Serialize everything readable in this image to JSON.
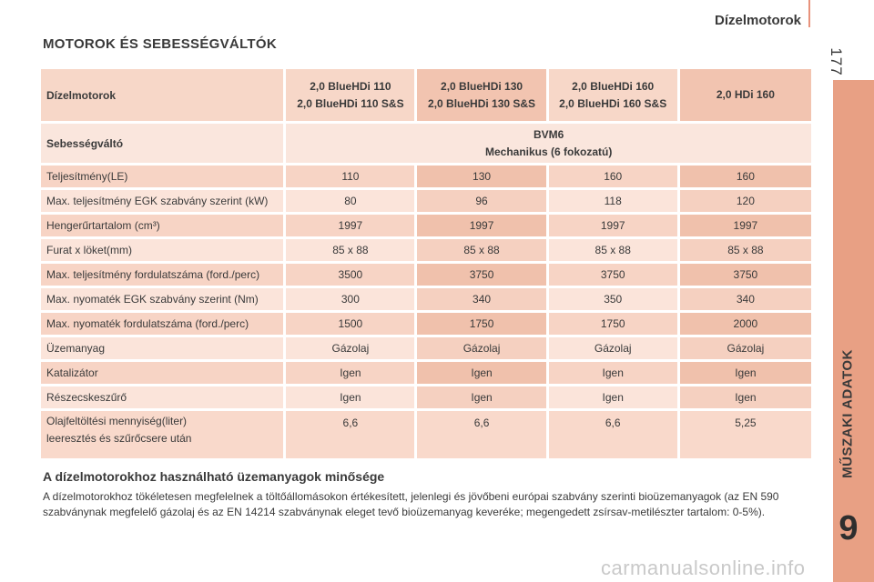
{
  "header": {
    "title": "Dízelmotorok",
    "page_number": "177"
  },
  "side_tab": {
    "label": "MŰSZAKI ADATOK",
    "chapter": "9"
  },
  "section": {
    "title": "MOTOROK ÉS SEBESSÉGVÁLTÓK"
  },
  "table": {
    "head_label": "Dízelmotorok",
    "engines": [
      {
        "line1": "2,0 BlueHDi 110",
        "line2": "2,0 BlueHDi 110 S&S"
      },
      {
        "line1": "2,0 BlueHDi 130",
        "line2": "2,0 BlueHDi 130 S&S"
      },
      {
        "line1": "2,0 BlueHDi 160",
        "line2": "2,0 BlueHDi 160 S&S"
      },
      {
        "line1": "2,0 HDi 160",
        "line2": ""
      }
    ],
    "gearbox_label": "Sebességváltó",
    "gearbox_line1": "BVM6",
    "gearbox_line2": "Mechanikus (6 fokozatú)",
    "rows": [
      {
        "label": "Teljesítmény(LE)",
        "values": [
          "110",
          "130",
          "160",
          "160"
        ]
      },
      {
        "label": "Max. teljesítmény EGK szabvány szerint (kW)",
        "values": [
          "80",
          "96",
          "118",
          "120"
        ]
      },
      {
        "label": "Hengerűrtartalom (cm³)",
        "values": [
          "1997",
          "1997",
          "1997",
          "1997"
        ]
      },
      {
        "label": "Furat x löket(mm)",
        "values": [
          "85 x 88",
          "85 x 88",
          "85 x 88",
          "85 x 88"
        ]
      },
      {
        "label": "Max. teljesítmény fordulatszáma (ford./perc)",
        "values": [
          "3500",
          "3750",
          "3750",
          "3750"
        ]
      },
      {
        "label": "Max. nyomaték EGK szabvány szerint (Nm)",
        "values": [
          "300",
          "340",
          "350",
          "340"
        ]
      },
      {
        "label": "Max. nyomaték fordulatszáma (ford./perc)",
        "values": [
          "1500",
          "1750",
          "1750",
          "2000"
        ]
      },
      {
        "label": "Üzemanyag",
        "values": [
          "Gázolaj",
          "Gázolaj",
          "Gázolaj",
          "Gázolaj"
        ]
      },
      {
        "label": "Katalizátor",
        "values": [
          "Igen",
          "Igen",
          "Igen",
          "Igen"
        ]
      },
      {
        "label": "Részecskeszűrő",
        "values": [
          "Igen",
          "Igen",
          "Igen",
          "Igen"
        ]
      }
    ],
    "oil_label_line1": "Olajfeltöltési mennyiség(liter)",
    "oil_label_line2": "leeresztés és szűrőcsere után",
    "oil_values": [
      "6,6",
      "6,6",
      "6,6",
      "5,25"
    ]
  },
  "fuel_quality": {
    "heading": "A dízelmotorokhoz használható üzemanyagok minősége",
    "body": "A dízelmotorokhoz tökéletesen megfelelnek a töltőállomásokon értékesített, jelenlegi és jövőbeni európai szabvány szerinti bioüzemanyagok (az EN 590 szabványnak megfelelő gázolaj és az EN 14214 szabványnak eleget tevő bioüzemanyag keveréke; megengedett zsírsav-metilészter tartalom: 0-5%)."
  },
  "watermark": "carmanualsonline.info",
  "colors": {
    "accent": "#e8a084",
    "cell_dark": "#f2c4b0",
    "cell_light": "#fbe4da"
  }
}
